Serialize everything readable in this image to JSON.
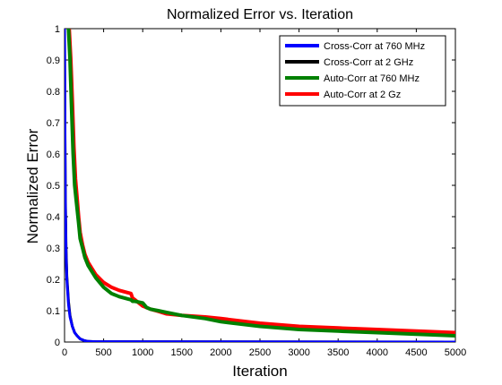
{
  "chart_data": {
    "type": "line",
    "title": "Normalized Error vs. Iteration",
    "xlabel": "Iteration",
    "ylabel": "Normalized Error",
    "xlim": [
      0,
      5000
    ],
    "ylim": [
      0,
      1
    ],
    "xticks": [
      0,
      500,
      1000,
      1500,
      2000,
      2500,
      3000,
      3500,
      4000,
      4500,
      5000
    ],
    "yticks": [
      0,
      0.1,
      0.2,
      0.3,
      0.4,
      0.5,
      0.6,
      0.7,
      0.8,
      0.9,
      1
    ],
    "xtick_labels": [
      "0",
      "500",
      "1000",
      "1500",
      "2000",
      "2500",
      "3000",
      "3500",
      "4000",
      "4500",
      "5000"
    ],
    "ytick_labels": [
      "0",
      "0.1",
      "0.2",
      "0.3",
      "0.4",
      "0.5",
      "0.6",
      "0.7",
      "0.8",
      "0.9",
      "1"
    ],
    "grid": false,
    "legend_position": "top-right",
    "series": [
      {
        "name": "Cross-Corr at 760 MHz",
        "color": "#0000ff",
        "x": [
          0,
          5,
          10,
          20,
          30,
          50,
          70,
          100,
          130,
          160,
          200,
          250,
          300,
          400,
          5000
        ],
        "y": [
          1.0,
          0.7,
          0.45,
          0.28,
          0.2,
          0.12,
          0.08,
          0.05,
          0.03,
          0.02,
          0.01,
          0.005,
          0.002,
          0.001,
          0.0
        ]
      },
      {
        "name": "Cross-Corr at 2 GHz",
        "color": "#000000",
        "x": [
          0,
          5,
          10,
          20,
          30,
          50,
          70,
          100,
          130,
          160,
          200,
          250,
          300,
          400,
          5000
        ],
        "y": [
          1.0,
          0.72,
          0.47,
          0.3,
          0.21,
          0.13,
          0.085,
          0.05,
          0.03,
          0.02,
          0.01,
          0.005,
          0.002,
          0.001,
          0.0
        ]
      },
      {
        "name": "Auto-Corr at 760 MHz",
        "color": "#008000",
        "x": [
          50,
          70,
          90,
          110,
          130,
          150,
          180,
          200,
          230,
          260,
          300,
          350,
          400,
          500,
          600,
          700,
          800,
          850,
          870,
          900,
          1000,
          1050,
          1100,
          1200,
          1300,
          1500,
          1800,
          2000,
          2500,
          3000,
          3500,
          4000,
          4500,
          5000
        ],
        "y": [
          1.0,
          0.9,
          0.75,
          0.6,
          0.5,
          0.45,
          0.38,
          0.33,
          0.3,
          0.27,
          0.245,
          0.225,
          0.205,
          0.175,
          0.155,
          0.145,
          0.138,
          0.135,
          0.13,
          0.13,
          0.125,
          0.11,
          0.105,
          0.1,
          0.095,
          0.085,
          0.075,
          0.065,
          0.05,
          0.04,
          0.035,
          0.03,
          0.025,
          0.02
        ]
      },
      {
        "name": "Auto-Corr at 2 Gz",
        "color": "#ff0000",
        "x": [
          60,
          80,
          100,
          120,
          140,
          160,
          180,
          200,
          230,
          260,
          300,
          350,
          400,
          500,
          600,
          700,
          800,
          850,
          870,
          900,
          950,
          1000,
          1100,
          1200,
          1300,
          1500,
          1800,
          2000,
          2500,
          3000,
          3500,
          4000,
          4500,
          5000
        ],
        "y": [
          1.0,
          0.9,
          0.77,
          0.62,
          0.52,
          0.46,
          0.4,
          0.35,
          0.31,
          0.28,
          0.255,
          0.235,
          0.215,
          0.19,
          0.175,
          0.165,
          0.158,
          0.155,
          0.14,
          0.135,
          0.125,
          0.115,
          0.105,
          0.098,
          0.09,
          0.085,
          0.08,
          0.075,
          0.06,
          0.05,
          0.045,
          0.04,
          0.035,
          0.03
        ]
      }
    ]
  }
}
